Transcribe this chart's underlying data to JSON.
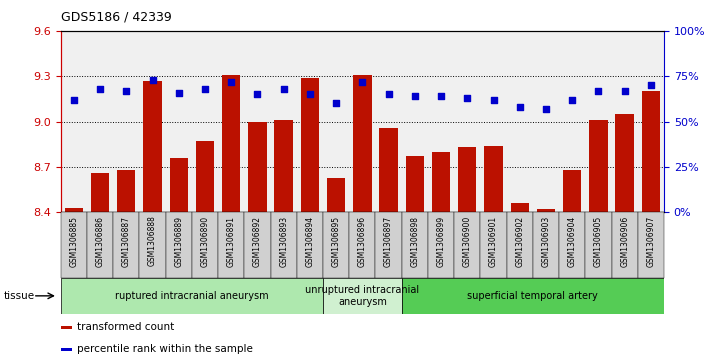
{
  "title": "GDS5186 / 42339",
  "samples": [
    "GSM1306885",
    "GSM1306886",
    "GSM1306887",
    "GSM1306888",
    "GSM1306889",
    "GSM1306890",
    "GSM1306891",
    "GSM1306892",
    "GSM1306893",
    "GSM1306894",
    "GSM1306895",
    "GSM1306896",
    "GSM1306897",
    "GSM1306898",
    "GSM1306899",
    "GSM1306900",
    "GSM1306901",
    "GSM1306902",
    "GSM1306903",
    "GSM1306904",
    "GSM1306905",
    "GSM1306906",
    "GSM1306907"
  ],
  "transformed_count": [
    8.43,
    8.66,
    8.68,
    9.27,
    8.76,
    8.87,
    9.31,
    9.0,
    9.01,
    9.29,
    8.63,
    9.31,
    8.96,
    8.77,
    8.8,
    8.83,
    8.84,
    8.46,
    8.42,
    8.68,
    9.01,
    9.05,
    9.2
  ],
  "percentile_rank": [
    62,
    68,
    67,
    73,
    66,
    68,
    72,
    65,
    68,
    65,
    60,
    72,
    65,
    64,
    64,
    63,
    62,
    58,
    57,
    62,
    67,
    67,
    70
  ],
  "ylim_left": [
    8.4,
    9.6
  ],
  "ylim_right": [
    0,
    100
  ],
  "yticks_left": [
    8.4,
    8.7,
    9.0,
    9.3,
    9.6
  ],
  "yticks_right": [
    0,
    25,
    50,
    75,
    100
  ],
  "ytick_labels_right": [
    "0%",
    "25%",
    "50%",
    "75%",
    "100%"
  ],
  "groups": [
    {
      "label": "ruptured intracranial aneurysm",
      "start": 0,
      "end": 10,
      "color": "#aee8ae"
    },
    {
      "label": "unruptured intracranial\naneurysm",
      "start": 10,
      "end": 13,
      "color": "#d0f0d0"
    },
    {
      "label": "superficial temporal artery",
      "start": 13,
      "end": 23,
      "color": "#55cc55"
    }
  ],
  "bar_color": "#bb1100",
  "dot_color": "#0000cc",
  "grid_color": "#000000",
  "axis_left_color": "#cc0000",
  "axis_right_color": "#0000cc",
  "plot_bg_color": "#f0f0f0",
  "xtick_bg_color": "#d0d0d0",
  "tissue_label": "tissue",
  "legend_items": [
    {
      "label": "transformed count",
      "color": "#bb1100"
    },
    {
      "label": "percentile rank within the sample",
      "color": "#0000cc"
    }
  ],
  "ymin": 8.4,
  "fig_bg": "#ffffff"
}
